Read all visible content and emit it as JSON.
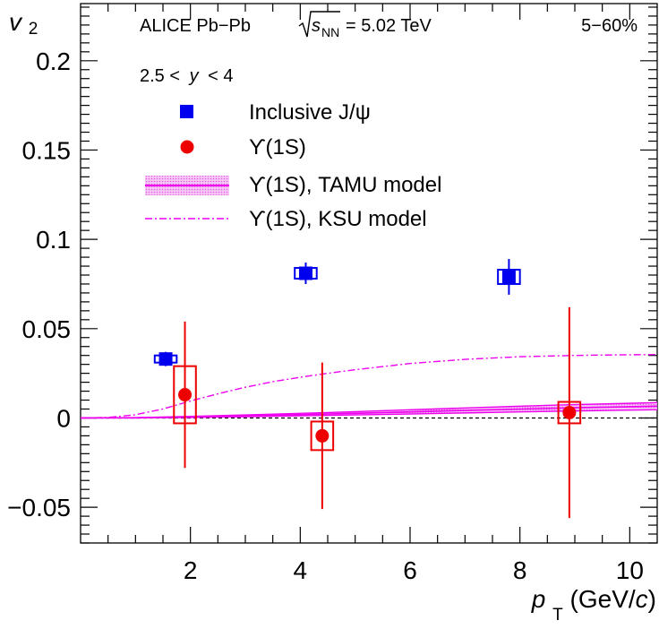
{
  "chart_data": {
    "type": "scatter",
    "xlabel": "p_T (GeV/c)",
    "xlabel_parts": {
      "var": "p",
      "sub": "T",
      "unit_open": " (GeV/",
      "unit_var": "c",
      "unit_close": ")"
    },
    "ylabel": "v_2",
    "ylabel_parts": {
      "var": "v",
      "sub": "2"
    },
    "xlim": [
      0,
      10.5
    ],
    "ylim": [
      -0.07,
      0.232
    ],
    "x_ticks": [
      2,
      4,
      6,
      8,
      10
    ],
    "x_tick_labels": [
      "2",
      "4",
      "6",
      "8",
      "10"
    ],
    "y_ticks": [
      -0.05,
      0,
      0.05,
      0.1,
      0.15,
      0.2
    ],
    "y_tick_labels": [
      "−0.05",
      "0",
      "0.05",
      "0.1",
      "0.15",
      "0.2"
    ],
    "grid": false,
    "annotations": {
      "experiment": "ALICE Pb−Pb",
      "energy_sqrt": "s",
      "energy_sub": "NN",
      "energy_value": "= 5.02 TeV",
      "centrality": "5−60%",
      "rapidity_left": "2.5 <",
      "rapidity_var": "y",
      "rapidity_right": "< 4"
    },
    "legend_placement": "top-left",
    "series": [
      {
        "name": "Inclusive J/ψ",
        "color": "#0000ee",
        "marker": "square",
        "points": [
          {
            "x": 1.55,
            "y": 0.033,
            "stat_err": 0.004,
            "syst_err": 0.002,
            "syst_halfwidth": 0.2
          },
          {
            "x": 4.1,
            "y": 0.081,
            "stat_err": 0.006,
            "syst_err": 0.003,
            "syst_halfwidth": 0.2
          },
          {
            "x": 7.8,
            "y": 0.079,
            "stat_err": 0.01,
            "syst_err": 0.004,
            "syst_halfwidth": 0.2
          }
        ]
      },
      {
        "name": "ϒ(1S)",
        "color": "#ee0000",
        "marker": "circle",
        "points": [
          {
            "x": 1.9,
            "y": 0.013,
            "stat_err": 0.041,
            "syst_err": 0.016,
            "syst_halfwidth": 0.2
          },
          {
            "x": 4.4,
            "y": -0.01,
            "stat_err": 0.041,
            "syst_err": 0.008,
            "syst_halfwidth": 0.2
          },
          {
            "x": 8.9,
            "y": 0.003,
            "stat_err": 0.059,
            "syst_err": 0.006,
            "syst_halfwidth": 0.2
          }
        ]
      },
      {
        "name": "ϒ(1S), TAMU model",
        "color": "#ee00ee",
        "style": "band",
        "x": [
          0,
          1,
          2,
          3,
          4,
          5,
          6,
          7,
          8,
          9,
          10,
          10.5
        ],
        "y": [
          0,
          0.0001,
          0.0006,
          0.0012,
          0.0019,
          0.0026,
          0.0034,
          0.0042,
          0.005,
          0.0057,
          0.0063,
          0.0066
        ],
        "y_low": [
          0,
          0.0,
          0.0003,
          0.0007,
          0.0012,
          0.0017,
          0.0022,
          0.0028,
          0.0034,
          0.0039,
          0.0044,
          0.0046
        ],
        "y_high": [
          0,
          0.0002,
          0.0009,
          0.0017,
          0.0026,
          0.0035,
          0.0046,
          0.0056,
          0.0066,
          0.0075,
          0.0082,
          0.0086
        ]
      },
      {
        "name": "ϒ(1S), KSU model",
        "color": "#ee00ee",
        "style": "dash-dot",
        "x": [
          0,
          0.5,
          1,
          1.5,
          2,
          2.5,
          3,
          3.5,
          4,
          4.5,
          5,
          6,
          7,
          8,
          9,
          10,
          10.5
        ],
        "y": [
          0,
          0.0003,
          0.0018,
          0.005,
          0.0095,
          0.0135,
          0.0172,
          0.0203,
          0.0228,
          0.025,
          0.027,
          0.0305,
          0.0328,
          0.0343,
          0.035,
          0.0354,
          0.0355
        ]
      }
    ]
  }
}
